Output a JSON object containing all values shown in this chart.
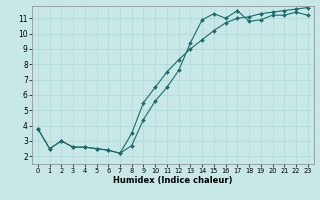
{
  "xlabel": "Humidex (Indice chaleur)",
  "background_color": "#c8e8e8",
  "grid_color": "#b0d8d8",
  "line_color": "#1a6b6b",
  "xlim": [
    -0.5,
    23.5
  ],
  "ylim": [
    1.5,
    11.8
  ],
  "yticks": [
    2,
    3,
    4,
    5,
    6,
    7,
    8,
    9,
    10,
    11
  ],
  "xticks": [
    0,
    1,
    2,
    3,
    4,
    5,
    6,
    7,
    8,
    9,
    10,
    11,
    12,
    13,
    14,
    15,
    16,
    17,
    18,
    19,
    20,
    21,
    22,
    23
  ],
  "line1_x": [
    0,
    1,
    2,
    3,
    4,
    5,
    6,
    7,
    8,
    9,
    10,
    11,
    12,
    13,
    14,
    15,
    16,
    17,
    18,
    19,
    20,
    21,
    22,
    23
  ],
  "line1_y": [
    3.8,
    2.5,
    3.0,
    2.6,
    2.6,
    2.5,
    2.4,
    2.2,
    2.7,
    4.4,
    5.6,
    6.5,
    7.6,
    9.4,
    10.9,
    11.3,
    11.0,
    11.5,
    10.8,
    10.9,
    11.2,
    11.2,
    11.4,
    11.2
  ],
  "line2_x": [
    0,
    1,
    2,
    3,
    4,
    5,
    6,
    7,
    8,
    9,
    10,
    11,
    12,
    13,
    14,
    15,
    16,
    17,
    18,
    19,
    20,
    21,
    22,
    23
  ],
  "line2_y": [
    3.8,
    2.5,
    3.0,
    2.6,
    2.6,
    2.5,
    2.4,
    2.2,
    3.5,
    5.5,
    6.5,
    7.5,
    8.3,
    9.0,
    9.6,
    10.2,
    10.7,
    11.0,
    11.1,
    11.3,
    11.4,
    11.5,
    11.6,
    11.7
  ]
}
